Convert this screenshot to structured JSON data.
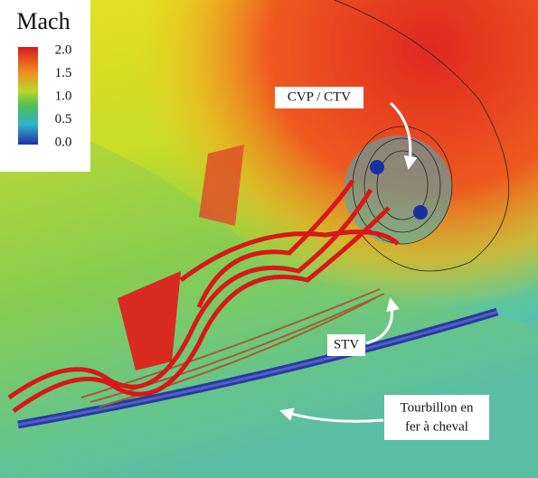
{
  "colorbar": {
    "title": "Mach",
    "ticks": [
      "2.0",
      "1.5",
      "1.0",
      "0.5",
      "0.0"
    ]
  },
  "annotations": {
    "cvp": "CVP / CTV",
    "stv": "STV",
    "horseshoe": [
      "Tourbillon en",
      "fer à cheval"
    ]
  }
}
